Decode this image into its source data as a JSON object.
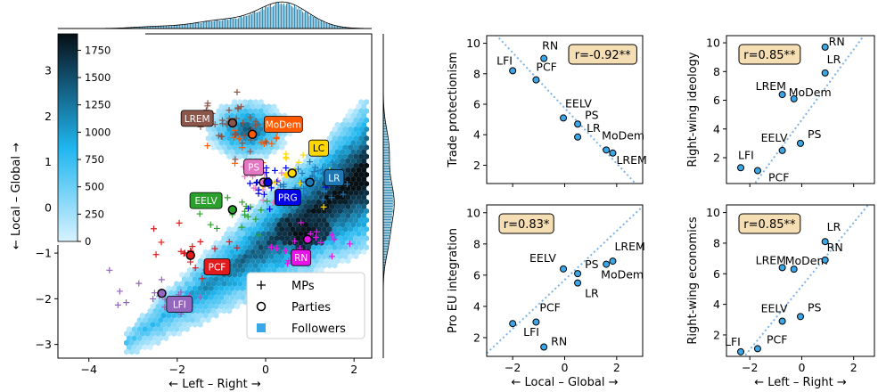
{
  "colors": {
    "followers_light": "#bfe9ff",
    "followers_mid": "#1fb6ef",
    "followers_dark": "#0a2a3a",
    "regression_line": "#7fb3e6",
    "scatter_point": "#3aa7e8",
    "r_box_fill": "#f5deb3"
  },
  "chart_data": [
    {
      "type": "scatter",
      "id": "main",
      "xlabel": "← Left – Right →",
      "ylabel": "← Local – Global →",
      "xlim": [
        -4.7,
        2.4
      ],
      "ylim": [
        -3.3,
        3.8
      ],
      "xticks": [
        -4,
        -2,
        0,
        2
      ],
      "xtick_labels": [
        "−4",
        "−2",
        "0",
        "2"
      ],
      "yticks": [
        -3,
        -2,
        -1,
        0,
        1,
        2,
        3
      ],
      "ytick_labels": [
        "−3",
        "−2",
        "−1",
        "0",
        "1",
        "2",
        "3"
      ],
      "colorbar": {
        "ticks": [
          0,
          250,
          500,
          750,
          1000,
          1250,
          1500,
          1750
        ],
        "tick_labels": [
          "0",
          "250",
          "500",
          "750",
          "1000",
          "1250",
          "1500",
          "1750"
        ],
        "range": [
          0,
          1900
        ]
      },
      "legend": {
        "position": "bottom-right",
        "entries": [
          {
            "label": "MPs",
            "marker": "+"
          },
          {
            "label": "Parties",
            "marker": "o"
          },
          {
            "label": "Followers",
            "marker": "square"
          }
        ]
      },
      "parties": [
        {
          "name": "LFI",
          "x": -2.35,
          "y": -1.88,
          "color": "#9467bd",
          "label_x": -1.95,
          "label_y": -2.12
        },
        {
          "name": "PCF",
          "x": -1.7,
          "y": -1.05,
          "color": "#e31a1c",
          "label_x": -1.1,
          "label_y": -1.3
        },
        {
          "name": "EELV",
          "x": -0.75,
          "y": -0.05,
          "color": "#2ca02c",
          "label_x": -1.35,
          "label_y": 0.15
        },
        {
          "name": "PS",
          "x": -0.05,
          "y": 0.55,
          "color": "#e377c2",
          "label_x": -0.27,
          "label_y": 0.88
        },
        {
          "name": "PRG",
          "x": 0.05,
          "y": 0.55,
          "color": "#0000e6",
          "label_x": 0.5,
          "label_y": 0.22
        },
        {
          "name": "LR",
          "x": 1.0,
          "y": 0.55,
          "color": "#1f77b4",
          "label_x": 1.55,
          "label_y": 0.65
        },
        {
          "name": "LC",
          "x": 0.6,
          "y": 0.75,
          "color": "#ffd700",
          "label_x": 1.2,
          "label_y": 1.3
        },
        {
          "name": "MoDem",
          "x": -0.3,
          "y": 1.6,
          "color": "#ff5a00",
          "label_x": 0.4,
          "label_y": 1.82
        },
        {
          "name": "LREM",
          "x": -0.75,
          "y": 1.85,
          "color": "#8c564b",
          "label_x": -1.55,
          "label_y": 1.95
        },
        {
          "name": "RN",
          "x": 0.95,
          "y": -0.7,
          "color": "#e614e6",
          "label_x": 0.8,
          "label_y": -1.1
        }
      ]
    },
    {
      "type": "scatter",
      "id": "trade",
      "ylabel": "Trade protectionism",
      "r_label": "r=-0.92**",
      "xlim": [
        -3,
        3
      ],
      "ylim": [
        0.8,
        10.5
      ],
      "x_axis": "local-global",
      "yticks": [
        2,
        4,
        6,
        8,
        10
      ],
      "show_xticks": false,
      "line": [
        [
          -3,
          11.2
        ],
        [
          3,
          0.3
        ]
      ],
      "points": [
        {
          "name": "LFI",
          "x": -2.0,
          "y": 8.2
        },
        {
          "name": "RN",
          "x": -0.8,
          "y": 9.0
        },
        {
          "name": "PCF",
          "x": -1.1,
          "y": 7.6
        },
        {
          "name": "EELV",
          "x": -0.05,
          "y": 5.1
        },
        {
          "name": "PS",
          "x": 0.5,
          "y": 4.7
        },
        {
          "name": "LR",
          "x": 0.5,
          "y": 3.85
        },
        {
          "name": "MoDem",
          "x": 1.6,
          "y": 3.0
        },
        {
          "name": "LREM",
          "x": 1.85,
          "y": 2.8
        }
      ]
    },
    {
      "type": "scatter",
      "id": "ideology",
      "ylabel": "Right-wing ideology",
      "r_label": "r=0.85**",
      "xlim": [
        -2.9,
        2.8
      ],
      "ylim": [
        0.2,
        10.5
      ],
      "x_axis": "left-right",
      "yticks": [
        0,
        2,
        4,
        6,
        8,
        10
      ],
      "show_xticks": false,
      "line": [
        [
          -2.5,
          -1.5
        ],
        [
          2.8,
          11.5
        ]
      ],
      "points": [
        {
          "name": "LFI",
          "x": -2.35,
          "y": 1.3
        },
        {
          "name": "PCF",
          "x": -1.7,
          "y": 1.1
        },
        {
          "name": "EELV",
          "x": -0.75,
          "y": 2.5
        },
        {
          "name": "PS",
          "x": -0.05,
          "y": 3.0
        },
        {
          "name": "LREM",
          "x": -0.75,
          "y": 6.4
        },
        {
          "name": "MoDem",
          "x": -0.3,
          "y": 6.1
        },
        {
          "name": "LR",
          "x": 0.9,
          "y": 7.9
        },
        {
          "name": "RN",
          "x": 0.9,
          "y": 9.7
        }
      ]
    },
    {
      "type": "scatter",
      "id": "eu",
      "ylabel": "Pro EU integration",
      "r_label": "r=0.83*",
      "xlim": [
        -3,
        3
      ],
      "ylim": [
        0.8,
        10.5
      ],
      "x_axis": "local-global",
      "xticks": [
        -2,
        0,
        2
      ],
      "xtick_labels": [
        "−2",
        "0",
        "2"
      ],
      "xlabel": "← Local – Global →",
      "yticks": [
        2,
        4,
        6,
        8,
        10
      ],
      "show_xticks": true,
      "line": [
        [
          -3,
          1.0
        ],
        [
          3,
          10.4
        ]
      ],
      "points": [
        {
          "name": "LFI",
          "x": -2.0,
          "y": 2.9
        },
        {
          "name": "PCF",
          "x": -1.1,
          "y": 3.0
        },
        {
          "name": "RN",
          "x": -0.8,
          "y": 1.4
        },
        {
          "name": "EELV",
          "x": -0.05,
          "y": 6.4
        },
        {
          "name": "PS",
          "x": 0.5,
          "y": 6.1
        },
        {
          "name": "LR",
          "x": 0.5,
          "y": 5.5
        },
        {
          "name": "MoDem",
          "x": 1.6,
          "y": 6.7
        },
        {
          "name": "LREM",
          "x": 1.85,
          "y": 6.9
        }
      ]
    },
    {
      "type": "scatter",
      "id": "economics",
      "ylabel": "Right-wing economics",
      "r_label": "r=0.85**",
      "xlim": [
        -2.9,
        2.8
      ],
      "ylim": [
        0.6,
        10.5
      ],
      "x_axis": "left-right",
      "xticks": [
        -2,
        0,
        2
      ],
      "xtick_labels": [
        "−2",
        "0",
        "2"
      ],
      "xlabel": "← Left – Right →",
      "yticks": [
        2,
        4,
        6,
        8,
        10
      ],
      "show_xticks": true,
      "line": [
        [
          -2.5,
          0.0
        ],
        [
          2.8,
          11.0
        ]
      ],
      "points": [
        {
          "name": "LFI",
          "x": -2.35,
          "y": 0.9
        },
        {
          "name": "PCF",
          "x": -1.7,
          "y": 1.1
        },
        {
          "name": "EELV",
          "x": -0.75,
          "y": 2.9
        },
        {
          "name": "PS",
          "x": -0.05,
          "y": 3.2
        },
        {
          "name": "LREM",
          "x": -0.75,
          "y": 6.4
        },
        {
          "name": "MoDem",
          "x": -0.3,
          "y": 6.3
        },
        {
          "name": "RN",
          "x": 0.9,
          "y": 6.9
        },
        {
          "name": "LR",
          "x": 0.9,
          "y": 8.1
        }
      ]
    }
  ]
}
